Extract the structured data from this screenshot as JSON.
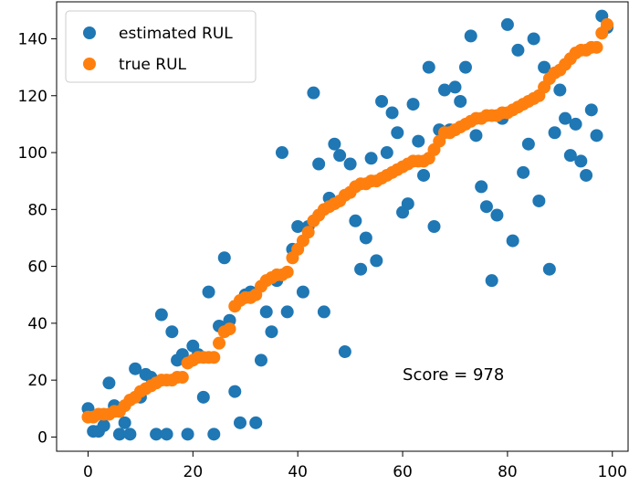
{
  "chart_data": {
    "type": "scatter",
    "xlim": [
      -6,
      103
    ],
    "ylim": [
      -5,
      153
    ],
    "x_ticks": [
      0,
      20,
      40,
      60,
      80,
      100
    ],
    "y_ticks": [
      0,
      20,
      40,
      60,
      80,
      100,
      120,
      140
    ],
    "grid": false,
    "legend_position": "top-left",
    "annotation": {
      "text": "Score = 978",
      "x": 60,
      "y": 20
    },
    "series": [
      {
        "name": "estimated RUL",
        "color": "#1f77b4",
        "points": [
          [
            0,
            10
          ],
          [
            1,
            2
          ],
          [
            2,
            2
          ],
          [
            3,
            4
          ],
          [
            4,
            19
          ],
          [
            5,
            11
          ],
          [
            6,
            1
          ],
          [
            7,
            5
          ],
          [
            8,
            1
          ],
          [
            9,
            24
          ],
          [
            10,
            14
          ],
          [
            11,
            22
          ],
          [
            12,
            21
          ],
          [
            13,
            1
          ],
          [
            14,
            43
          ],
          [
            15,
            1
          ],
          [
            16,
            37
          ],
          [
            17,
            27
          ],
          [
            18,
            29
          ],
          [
            19,
            1
          ],
          [
            20,
            32
          ],
          [
            21,
            29
          ],
          [
            22,
            14
          ],
          [
            23,
            51
          ],
          [
            24,
            1
          ],
          [
            25,
            39
          ],
          [
            26,
            63
          ],
          [
            27,
            41
          ],
          [
            28,
            16
          ],
          [
            29,
            5
          ],
          [
            30,
            50
          ],
          [
            31,
            51
          ],
          [
            32,
            5
          ],
          [
            33,
            27
          ],
          [
            34,
            44
          ],
          [
            35,
            37
          ],
          [
            36,
            55
          ],
          [
            37,
            100
          ],
          [
            38,
            44
          ],
          [
            39,
            66
          ],
          [
            40,
            74
          ],
          [
            41,
            51
          ],
          [
            42,
            74
          ],
          [
            43,
            121
          ],
          [
            44,
            96
          ],
          [
            45,
            44
          ],
          [
            46,
            84
          ],
          [
            47,
            103
          ],
          [
            48,
            99
          ],
          [
            49,
            30
          ],
          [
            50,
            96
          ],
          [
            51,
            76
          ],
          [
            52,
            59
          ],
          [
            53,
            70
          ],
          [
            54,
            98
          ],
          [
            55,
            62
          ],
          [
            56,
            118
          ],
          [
            57,
            100
          ],
          [
            58,
            114
          ],
          [
            59,
            107
          ],
          [
            60,
            79
          ],
          [
            61,
            82
          ],
          [
            62,
            117
          ],
          [
            63,
            104
          ],
          [
            64,
            92
          ],
          [
            65,
            130
          ],
          [
            66,
            74
          ],
          [
            67,
            108
          ],
          [
            68,
            122
          ],
          [
            69,
            108
          ],
          [
            70,
            123
          ],
          [
            71,
            118
          ],
          [
            72,
            130
          ],
          [
            73,
            141
          ],
          [
            74,
            106
          ],
          [
            75,
            88
          ],
          [
            76,
            81
          ],
          [
            77,
            55
          ],
          [
            78,
            78
          ],
          [
            79,
            112
          ],
          [
            80,
            145
          ],
          [
            81,
            69
          ],
          [
            82,
            136
          ],
          [
            83,
            93
          ],
          [
            84,
            103
          ],
          [
            85,
            140
          ],
          [
            86,
            83
          ],
          [
            87,
            130
          ],
          [
            88,
            59
          ],
          [
            89,
            107
          ],
          [
            90,
            122
          ],
          [
            91,
            112
          ],
          [
            92,
            99
          ],
          [
            93,
            110
          ],
          [
            94,
            97
          ],
          [
            95,
            92
          ],
          [
            96,
            115
          ],
          [
            97,
            106
          ],
          [
            98,
            148
          ],
          [
            99,
            144
          ]
        ]
      },
      {
        "name": "true RUL",
        "color": "#ff7f0e",
        "points": [
          [
            0,
            7
          ],
          [
            1,
            7
          ],
          [
            2,
            8
          ],
          [
            3,
            8
          ],
          [
            4,
            8
          ],
          [
            5,
            9
          ],
          [
            6,
            9
          ],
          [
            7,
            11
          ],
          [
            8,
            13
          ],
          [
            9,
            14
          ],
          [
            10,
            16
          ],
          [
            11,
            17
          ],
          [
            12,
            18
          ],
          [
            13,
            19
          ],
          [
            14,
            20
          ],
          [
            15,
            20
          ],
          [
            16,
            20
          ],
          [
            17,
            21
          ],
          [
            18,
            21
          ],
          [
            19,
            26
          ],
          [
            20,
            27
          ],
          [
            21,
            28
          ],
          [
            22,
            28
          ],
          [
            23,
            28
          ],
          [
            24,
            28
          ],
          [
            25,
            33
          ],
          [
            26,
            37
          ],
          [
            27,
            38
          ],
          [
            28,
            46
          ],
          [
            29,
            48
          ],
          [
            30,
            49
          ],
          [
            31,
            49
          ],
          [
            32,
            50
          ],
          [
            33,
            53
          ],
          [
            34,
            55
          ],
          [
            35,
            56
          ],
          [
            36,
            57
          ],
          [
            37,
            57
          ],
          [
            38,
            58
          ],
          [
            39,
            63
          ],
          [
            40,
            66
          ],
          [
            41,
            69
          ],
          [
            42,
            72
          ],
          [
            43,
            76
          ],
          [
            44,
            78
          ],
          [
            45,
            80
          ],
          [
            46,
            81
          ],
          [
            47,
            82
          ],
          [
            48,
            83
          ],
          [
            49,
            85
          ],
          [
            50,
            86
          ],
          [
            51,
            88
          ],
          [
            52,
            89
          ],
          [
            53,
            89
          ],
          [
            54,
            90
          ],
          [
            55,
            90
          ],
          [
            56,
            91
          ],
          [
            57,
            92
          ],
          [
            58,
            93
          ],
          [
            59,
            94
          ],
          [
            60,
            95
          ],
          [
            61,
            96
          ],
          [
            62,
            97
          ],
          [
            63,
            97
          ],
          [
            64,
            97
          ],
          [
            65,
            98
          ],
          [
            66,
            101
          ],
          [
            67,
            104
          ],
          [
            68,
            107
          ],
          [
            69,
            107
          ],
          [
            70,
            108
          ],
          [
            71,
            109
          ],
          [
            72,
            110
          ],
          [
            73,
            111
          ],
          [
            74,
            112
          ],
          [
            75,
            112
          ],
          [
            76,
            113
          ],
          [
            77,
            113
          ],
          [
            78,
            113
          ],
          [
            79,
            114
          ],
          [
            80,
            114
          ],
          [
            81,
            115
          ],
          [
            82,
            116
          ],
          [
            83,
            117
          ],
          [
            84,
            118
          ],
          [
            85,
            119
          ],
          [
            86,
            120
          ],
          [
            87,
            123
          ],
          [
            88,
            126
          ],
          [
            89,
            128
          ],
          [
            90,
            129
          ],
          [
            91,
            131
          ],
          [
            92,
            133
          ],
          [
            93,
            135
          ],
          [
            94,
            136
          ],
          [
            95,
            136
          ],
          [
            96,
            137
          ],
          [
            97,
            137
          ],
          [
            98,
            142
          ],
          [
            99,
            145
          ]
        ]
      }
    ]
  }
}
